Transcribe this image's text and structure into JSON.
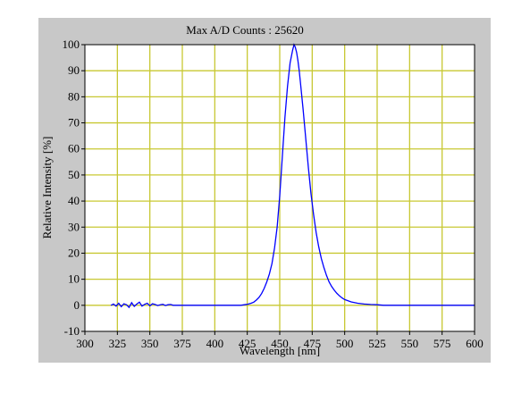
{
  "chart_data": {
    "type": "line",
    "title": "Max A/D Counts : 25620",
    "xlabel": "Wavelength [nm]",
    "ylabel": "Relative Intensity [%]",
    "xlim": [
      300,
      600
    ],
    "ylim": [
      -10,
      100
    ],
    "x_ticks": [
      300,
      325,
      350,
      375,
      400,
      425,
      450,
      475,
      500,
      525,
      550,
      575,
      600
    ],
    "y_ticks": [
      -10,
      0,
      10,
      20,
      30,
      40,
      50,
      60,
      70,
      80,
      90,
      100
    ],
    "grid": true,
    "colors": {
      "grid": "#c8c832",
      "line": "#0000ff",
      "plot_bg": "#ffffff",
      "panel_bg": "#c8c8c8"
    },
    "series": [
      {
        "x": [
          320,
          322,
          324,
          326,
          328,
          330,
          332,
          334,
          336,
          338,
          340,
          342,
          344,
          346,
          348,
          350,
          352,
          354,
          356,
          358,
          360,
          362,
          364,
          366,
          368,
          370,
          380,
          400,
          420,
          425,
          428,
          430,
          432,
          434,
          436,
          438,
          440,
          442,
          444,
          446,
          448,
          450,
          452,
          454,
          456,
          458,
          460,
          461,
          462,
          463,
          464,
          465,
          466,
          468,
          470,
          472,
          474,
          476,
          478,
          480,
          482,
          484,
          486,
          488,
          490,
          492,
          494,
          496,
          498,
          500,
          505,
          510,
          515,
          520,
          525,
          530,
          540,
          560,
          580,
          600
        ],
        "y": [
          0,
          0.5,
          -0.3,
          0.8,
          -0.5,
          0.6,
          0.2,
          -0.8,
          1.0,
          -0.4,
          0.5,
          1.2,
          -0.3,
          0.4,
          0.8,
          -0.2,
          0.6,
          0.3,
          -0.1,
          0.2,
          0.4,
          -0.1,
          0.2,
          0.3,
          0,
          0,
          0,
          0,
          0,
          0.4,
          0.8,
          1.2,
          2,
          3,
          4.5,
          6.5,
          9,
          12,
          16,
          22,
          30,
          42,
          57,
          72,
          84,
          93,
          98,
          100,
          99,
          97,
          94,
          90,
          85,
          75,
          64,
          53,
          43,
          35,
          28,
          22.5,
          18,
          14.5,
          11.5,
          9,
          7.2,
          5.8,
          4.6,
          3.6,
          2.8,
          2.2,
          1.3,
          0.8,
          0.5,
          0.3,
          0.2,
          0,
          0,
          0,
          0,
          0
        ]
      }
    ]
  }
}
